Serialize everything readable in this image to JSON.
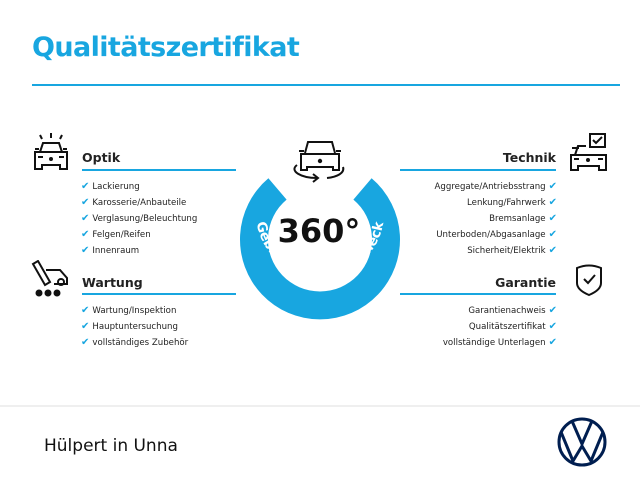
{
  "header": {
    "title": "Qualitätszertifikat"
  },
  "colors": {
    "accent": "#18a6e0",
    "logo": "#001e50"
  },
  "badge": {
    "number": "360°",
    "arc_text": "Gebrauchtwagen-Check",
    "icon": "car-rotate-icon"
  },
  "sections": {
    "optik": {
      "title": "Optik",
      "icon": "car-lights-icon",
      "items": [
        "Lackierung",
        "Karosserie/Anbauteile",
        "Verglasung/Beleuchtung",
        "Felgen/Reifen",
        "Innenraum"
      ]
    },
    "wartung": {
      "title": "Wartung",
      "icon": "service-tools-icon",
      "items": [
        "Wartung/Inspektion",
        "Hauptuntersuchung",
        "vollständiges Zubehör"
      ]
    },
    "technik": {
      "title": "Technik",
      "icon": "car-checkbox-icon",
      "items": [
        "Aggregate/Antriebsstrang",
        "Lenkung/Fahrwerk",
        "Bremsanlage",
        "Unterboden/Abgasanlage",
        "Sicherheit/Elektrik"
      ]
    },
    "garantie": {
      "title": "Garantie",
      "icon": "shield-check-icon",
      "items": [
        "Garantienachweis",
        "Qualitätszertifikat",
        "vollständige Unterlagen"
      ]
    }
  },
  "check_mark": "✔",
  "footer": {
    "dealer": "Hülpert in Unna",
    "logo": "vw-logo"
  }
}
